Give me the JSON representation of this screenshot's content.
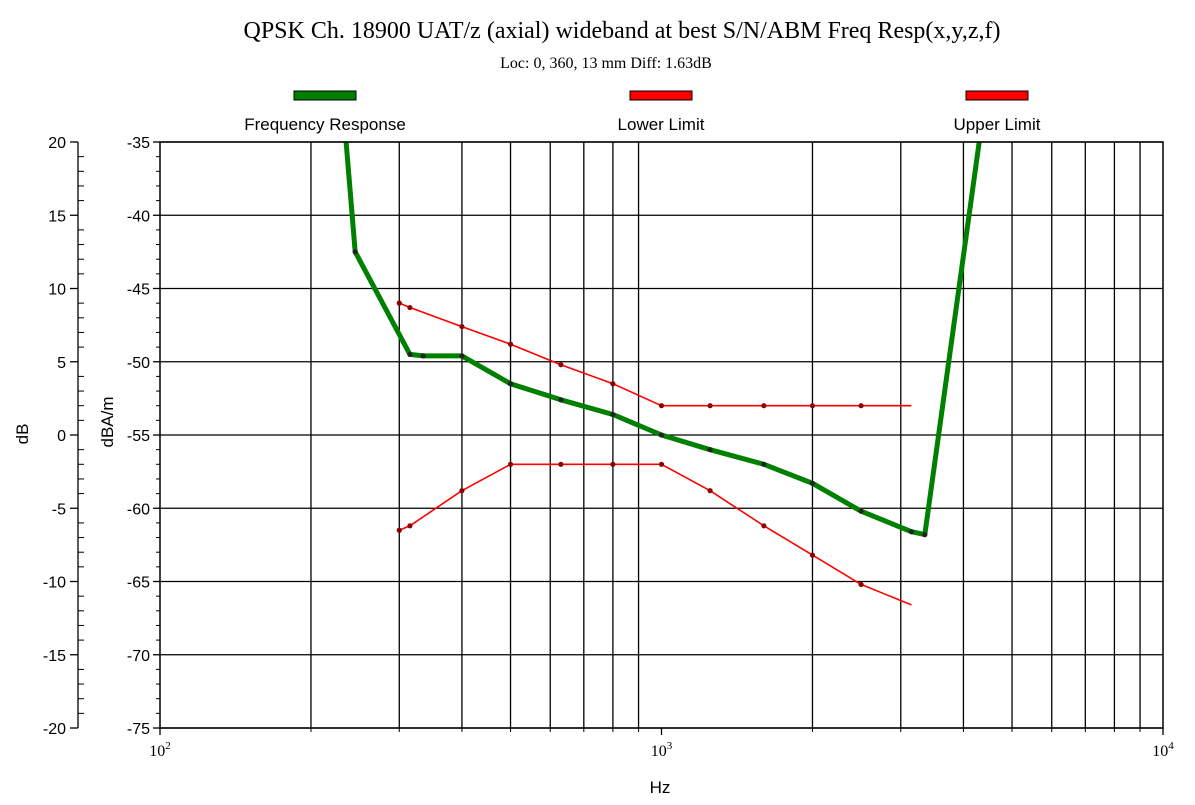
{
  "chart_data": {
    "type": "line",
    "title": "QPSK Ch. 18900 UAT/z (axial) wideband at best S/N/ABM Freq Resp(x,y,z,f)",
    "subtitle": "Loc: 0, 360, 13 mm Diff: 1.63dB",
    "xlabel": "Hz",
    "ylabel_left": "dB",
    "ylabel_right": "dBA/m",
    "x_scale": "log",
    "xlim": [
      100,
      10000
    ],
    "x_ticks": [
      {
        "base": "10",
        "exp": "2"
      },
      {
        "base": "10",
        "exp": "3"
      },
      {
        "base": "10",
        "exp": "4"
      }
    ],
    "ylim_left": [
      -20,
      20
    ],
    "y_ticks_left": [
      "20",
      "15",
      "10",
      "5",
      "0",
      "-5",
      "-10",
      "-15",
      "-20"
    ],
    "ylim_right": [
      -75,
      -35
    ],
    "y_ticks_right": [
      "-35",
      "-40",
      "-45",
      "-50",
      "-55",
      "-60",
      "-65",
      "-70",
      "-75"
    ],
    "grid": true,
    "legend_position": "top",
    "series": [
      {
        "name": "Frequency Response",
        "color": "#008000",
        "points": [
          [
            235,
            -35
          ],
          [
            245,
            -42.5
          ],
          [
            315,
            -49.5
          ],
          [
            335,
            -49.6
          ],
          [
            400,
            -49.6
          ],
          [
            500,
            -51.5
          ],
          [
            630,
            -52.6
          ],
          [
            800,
            -53.6
          ],
          [
            1000,
            -55
          ],
          [
            1250,
            -56
          ],
          [
            1600,
            -57
          ],
          [
            2000,
            -58.3
          ],
          [
            2500,
            -60.2
          ],
          [
            3150,
            -61.6
          ],
          [
            3350,
            -61.8
          ],
          [
            4300,
            -35
          ]
        ]
      },
      {
        "name": "Lower Limit",
        "color": "#ff0000",
        "points": [
          [
            300,
            -61.5
          ],
          [
            315,
            -61.2
          ],
          [
            400,
            -58.8
          ],
          [
            500,
            -57
          ],
          [
            630,
            -57
          ],
          [
            800,
            -57
          ],
          [
            1000,
            -57
          ],
          [
            1250,
            -58.8
          ],
          [
            1600,
            -61.2
          ],
          [
            2000,
            -63.2
          ],
          [
            2500,
            -65.2
          ],
          [
            3150,
            -66.6
          ]
        ]
      },
      {
        "name": "Upper Limit",
        "color": "#ff0000",
        "points": [
          [
            300,
            -46
          ],
          [
            315,
            -46.3
          ],
          [
            400,
            -47.6
          ],
          [
            500,
            -48.8
          ],
          [
            630,
            -50.2
          ],
          [
            800,
            -51.5
          ],
          [
            1000,
            -53
          ],
          [
            1250,
            -53
          ],
          [
            1600,
            -53
          ],
          [
            2000,
            -53
          ],
          [
            2500,
            -53
          ],
          [
            3150,
            -53
          ]
        ]
      }
    ]
  }
}
